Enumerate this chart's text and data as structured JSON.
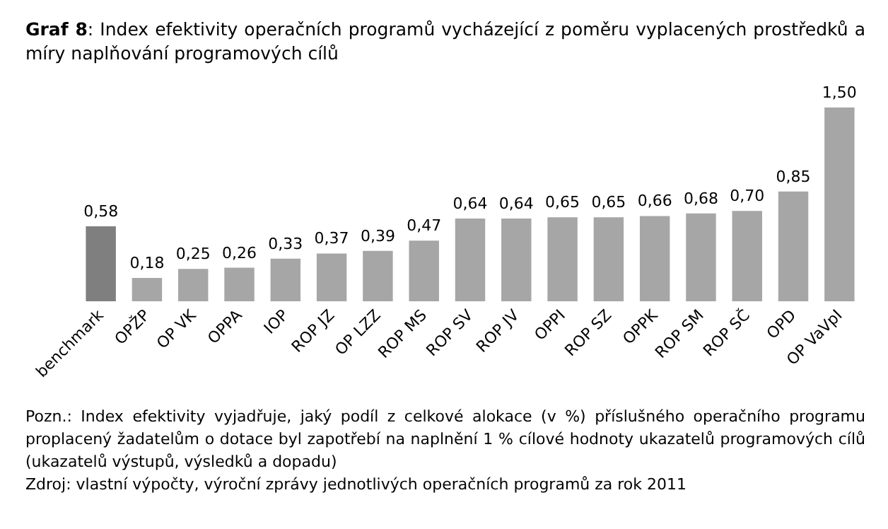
{
  "chart_data": {
    "type": "bar",
    "title": "Graf 8: Index efektivity operačních programů vycházející z poměru vyplacených prostředků a míry naplňování programových cílů",
    "categories": [
      "benchmark",
      "OPŽP",
      "OP VK",
      "OPPA",
      "IOP",
      "ROP JZ",
      "OP LZZ",
      "ROP MS",
      "ROP SV",
      "ROP JV",
      "OPPI",
      "ROP SZ",
      "OPPK",
      "ROP SM",
      "ROP SČ",
      "OPD",
      "OP VaVpI"
    ],
    "values": [
      0.58,
      0.18,
      0.25,
      0.26,
      0.33,
      0.37,
      0.39,
      0.47,
      0.64,
      0.64,
      0.65,
      0.65,
      0.66,
      0.68,
      0.7,
      0.85,
      1.5
    ],
    "value_labels": [
      "0,58",
      "0,18",
      "0,25",
      "0,26",
      "0,33",
      "0,37",
      "0,39",
      "0,47",
      "0,64",
      "0,64",
      "0,65",
      "0,65",
      "0,66",
      "0,68",
      "0,70",
      "0,85",
      "1,50"
    ],
    "colors": [
      "#7f7f7f",
      "#a6a6a6",
      "#a6a6a6",
      "#a6a6a6",
      "#a6a6a6",
      "#a6a6a6",
      "#a6a6a6",
      "#a6a6a6",
      "#a6a6a6",
      "#a6a6a6",
      "#a6a6a6",
      "#a6a6a6",
      "#a6a6a6",
      "#a6a6a6",
      "#a6a6a6",
      "#a6a6a6",
      "#a6a6a6"
    ],
    "annotations": [
      "Pozn.: Index efektivity vyjadřuje, jaký podíl z celkové alokace (v %) příslušného operačního programu proplacený žadatelům o dotace byl zapotřebí na naplnění 1 % cílové hodnoty ukazatelů programových cílů (ukazatelů výstupů, výsledků a dopadu)",
      "Zdroj: vlastní výpočty, výroční zprávy jednotlivých operačních programů za rok 2011"
    ],
    "grid": false
  }
}
